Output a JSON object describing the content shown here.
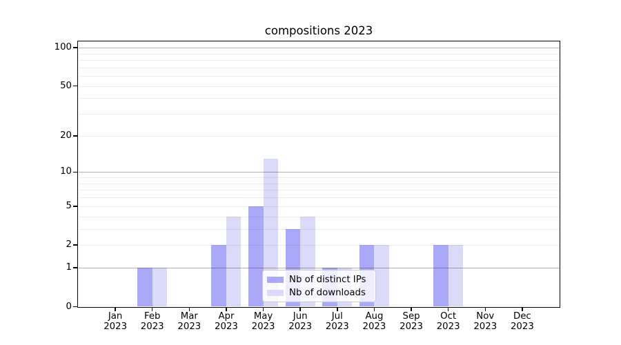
{
  "figure": {
    "title": "compositions 2023",
    "background": "#ffffff"
  },
  "style": {
    "axis_color": "#000000",
    "grid_major": "rgba(0,0,0,0.30)",
    "grid_minor": "rgba(0,0,0,0.07)",
    "legend_border": "#cccccc",
    "legend_background": "rgba(255,255,255,0.8)",
    "text_color": "#000000"
  },
  "chart_data": {
    "type": "bar",
    "title": "compositions 2023",
    "categories": [
      "Jan",
      "Feb",
      "Mar",
      "Apr",
      "May",
      "Jun",
      "Jul",
      "Aug",
      "Sep",
      "Oct",
      "Nov",
      "Dec"
    ],
    "category_year": "2023",
    "series": [
      {
        "name": "Nb of distinct IPs",
        "color": "#a9a9f7",
        "values": [
          0,
          1,
          0,
          2,
          5,
          3,
          1,
          2,
          0,
          2,
          0,
          0
        ]
      },
      {
        "name": "Nb of downloads",
        "color": "#dbdbf9",
        "values": [
          0,
          1,
          0,
          4,
          13,
          4,
          1,
          2,
          0,
          2,
          0,
          0
        ]
      }
    ],
    "xlabel": "",
    "ylabel": "",
    "yscale": "log1p",
    "yticks": [
      0,
      1,
      2,
      5,
      10,
      20,
      50,
      100
    ],
    "ytick_labels": [
      "0",
      "1",
      "2",
      "5",
      "10",
      "20",
      "50",
      "100"
    ],
    "minor_grid_values": [
      2,
      3,
      4,
      5,
      6,
      7,
      8,
      9,
      20,
      30,
      40,
      50,
      60,
      70,
      80,
      90
    ],
    "major_grid_values": [
      1,
      10,
      100
    ],
    "ylim": [
      0,
      113
    ],
    "grid": "horizontal, drawn above bars",
    "legend_position": "lower center"
  }
}
